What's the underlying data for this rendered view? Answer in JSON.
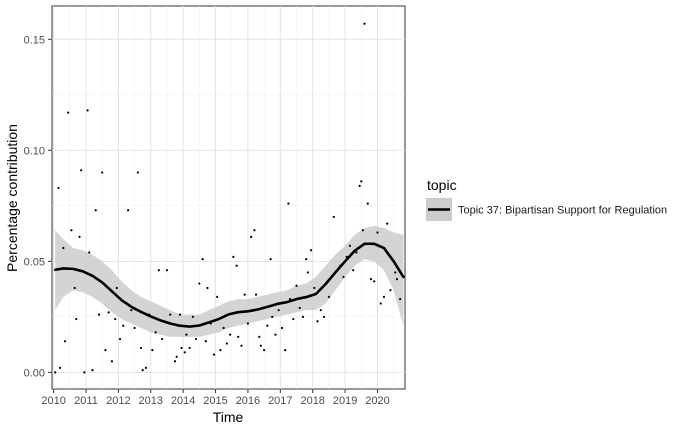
{
  "chart_data": {
    "type": "scatter",
    "title": "",
    "xlabel": "Time",
    "ylabel": "Percentage contribution",
    "xlim": [
      2009.95,
      2020.85
    ],
    "ylim": [
      -0.0075,
      0.165
    ],
    "x_ticks": [
      2010,
      2011,
      2012,
      2013,
      2014,
      2015,
      2016,
      2017,
      2018,
      2019,
      2020
    ],
    "x_tick_labels": [
      "2010",
      "2011",
      "2012",
      "2013",
      "2014",
      "2015",
      "2016",
      "2017",
      "2018",
      "2019",
      "2020"
    ],
    "y_ticks": [
      0.0,
      0.05,
      0.1,
      0.15
    ],
    "y_tick_labels": [
      "0.00",
      "0.05",
      "0.10",
      "0.15"
    ],
    "grid": true,
    "legend": {
      "title": "topic",
      "placement": "right",
      "entries": [
        "Topic 37: Bipartisan Support for Regulation"
      ]
    },
    "points": [
      [
        2010.05,
        0.0
      ],
      [
        2010.15,
        0.083
      ],
      [
        2010.2,
        0.002
      ],
      [
        2010.3,
        0.056
      ],
      [
        2010.35,
        0.014
      ],
      [
        2010.45,
        0.117
      ],
      [
        2010.55,
        0.064
      ],
      [
        2010.65,
        0.038
      ],
      [
        2010.7,
        0.024
      ],
      [
        2010.8,
        0.061
      ],
      [
        2010.85,
        0.091
      ],
      [
        2010.95,
        0.0
      ],
      [
        2011.05,
        0.118
      ],
      [
        2011.1,
        0.054
      ],
      [
        2011.2,
        0.001
      ],
      [
        2011.3,
        0.073
      ],
      [
        2011.4,
        0.026
      ],
      [
        2011.5,
        0.09
      ],
      [
        2011.6,
        0.01
      ],
      [
        2011.7,
        0.027
      ],
      [
        2011.8,
        0.005
      ],
      [
        2011.9,
        0.024
      ],
      [
        2011.95,
        0.038
      ],
      [
        2012.05,
        0.015
      ],
      [
        2012.15,
        0.021
      ],
      [
        2012.3,
        0.073
      ],
      [
        2012.4,
        0.028
      ],
      [
        2012.5,
        0.02
      ],
      [
        2012.6,
        0.09
      ],
      [
        2012.7,
        0.011
      ],
      [
        2012.75,
        0.001
      ],
      [
        2012.85,
        0.002
      ],
      [
        2012.95,
        0.026
      ],
      [
        2013.05,
        0.01
      ],
      [
        2013.15,
        0.018
      ],
      [
        2013.25,
        0.046
      ],
      [
        2013.35,
        0.015
      ],
      [
        2013.5,
        0.046
      ],
      [
        2013.6,
        0.026
      ],
      [
        2013.75,
        0.005
      ],
      [
        2013.8,
        0.007
      ],
      [
        2013.9,
        0.026
      ],
      [
        2013.95,
        0.011
      ],
      [
        2014.05,
        0.009
      ],
      [
        2014.1,
        0.017
      ],
      [
        2014.2,
        0.011
      ],
      [
        2014.3,
        0.025
      ],
      [
        2014.4,
        0.015
      ],
      [
        2014.5,
        0.04
      ],
      [
        2014.6,
        0.051
      ],
      [
        2014.7,
        0.014
      ],
      [
        2014.75,
        0.038
      ],
      [
        2014.85,
        0.022
      ],
      [
        2014.95,
        0.008
      ],
      [
        2015.05,
        0.034
      ],
      [
        2015.15,
        0.01
      ],
      [
        2015.25,
        0.02
      ],
      [
        2015.35,
        0.013
      ],
      [
        2015.45,
        0.017
      ],
      [
        2015.55,
        0.052
      ],
      [
        2015.65,
        0.048
      ],
      [
        2015.7,
        0.016
      ],
      [
        2015.8,
        0.012
      ],
      [
        2015.9,
        0.035
      ],
      [
        2016.0,
        0.022
      ],
      [
        2016.1,
        0.061
      ],
      [
        2016.2,
        0.064
      ],
      [
        2016.25,
        0.035
      ],
      [
        2016.35,
        0.016
      ],
      [
        2016.4,
        0.012
      ],
      [
        2016.5,
        0.01
      ],
      [
        2016.6,
        0.021
      ],
      [
        2016.7,
        0.051
      ],
      [
        2016.75,
        0.025
      ],
      [
        2016.85,
        0.017
      ],
      [
        2016.95,
        0.028
      ],
      [
        2017.05,
        0.02
      ],
      [
        2017.15,
        0.01
      ],
      [
        2017.25,
        0.076
      ],
      [
        2017.3,
        0.033
      ],
      [
        2017.4,
        0.024
      ],
      [
        2017.5,
        0.039
      ],
      [
        2017.6,
        0.029
      ],
      [
        2017.7,
        0.025
      ],
      [
        2017.8,
        0.051
      ],
      [
        2017.85,
        0.045
      ],
      [
        2017.95,
        0.055
      ],
      [
        2018.05,
        0.038
      ],
      [
        2018.15,
        0.023
      ],
      [
        2018.25,
        0.028
      ],
      [
        2018.35,
        0.025
      ],
      [
        2018.5,
        0.034
      ],
      [
        2018.65,
        0.07
      ],
      [
        2018.75,
        0.046
      ],
      [
        2018.85,
        0.048
      ],
      [
        2018.95,
        0.043
      ],
      [
        2019.05,
        0.052
      ],
      [
        2019.15,
        0.057
      ],
      [
        2019.25,
        0.046
      ],
      [
        2019.35,
        0.054
      ],
      [
        2019.45,
        0.084
      ],
      [
        2019.5,
        0.086
      ],
      [
        2019.55,
        0.064
      ],
      [
        2019.6,
        0.157
      ],
      [
        2019.7,
        0.076
      ],
      [
        2019.8,
        0.042
      ],
      [
        2019.9,
        0.041
      ],
      [
        2020.0,
        0.063
      ],
      [
        2020.1,
        0.031
      ],
      [
        2020.2,
        0.034
      ],
      [
        2020.3,
        0.067
      ],
      [
        2020.4,
        0.037
      ],
      [
        2020.55,
        0.045
      ],
      [
        2020.6,
        0.042
      ],
      [
        2020.7,
        0.033
      ]
    ],
    "series": [
      {
        "name": "Topic 37: Bipartisan Support for Regulation",
        "type": "smooth",
        "color": "#000000",
        "band_color": "#cccccc",
        "x": [
          2010.05,
          2010.3,
          2010.6,
          2010.9,
          2011.2,
          2011.5,
          2011.8,
          2012.1,
          2012.4,
          2012.7,
          2013.0,
          2013.3,
          2013.6,
          2013.9,
          2014.2,
          2014.5,
          2014.8,
          2015.1,
          2015.4,
          2015.7,
          2016.0,
          2016.3,
          2016.6,
          2016.9,
          2017.2,
          2017.5,
          2017.8,
          2018.1,
          2018.4,
          2018.7,
          2019.0,
          2019.3,
          2019.6,
          2019.9,
          2020.2,
          2020.5,
          2020.8
        ],
        "y": [
          0.0462,
          0.0468,
          0.0466,
          0.0455,
          0.0435,
          0.0405,
          0.0365,
          0.0325,
          0.0295,
          0.0272,
          0.0252,
          0.0234,
          0.022,
          0.021,
          0.0206,
          0.0211,
          0.0225,
          0.024,
          0.0261,
          0.0271,
          0.0275,
          0.0283,
          0.0295,
          0.0308,
          0.0316,
          0.033,
          0.0339,
          0.0353,
          0.0398,
          0.045,
          0.05,
          0.0548,
          0.0579,
          0.0579,
          0.056,
          0.05,
          0.043
        ],
        "lower": [
          0.028,
          0.034,
          0.037,
          0.036,
          0.034,
          0.031,
          0.027,
          0.024,
          0.022,
          0.02,
          0.018,
          0.017,
          0.016,
          0.016,
          0.016,
          0.016,
          0.017,
          0.018,
          0.02,
          0.021,
          0.022,
          0.023,
          0.024,
          0.025,
          0.026,
          0.027,
          0.028,
          0.028,
          0.031,
          0.037,
          0.043,
          0.048,
          0.051,
          0.05,
          0.046,
          0.037,
          0.021
        ],
        "upper": [
          0.064,
          0.06,
          0.056,
          0.055,
          0.053,
          0.05,
          0.046,
          0.041,
          0.037,
          0.034,
          0.032,
          0.03,
          0.028,
          0.026,
          0.026,
          0.026,
          0.028,
          0.03,
          0.032,
          0.033,
          0.033,
          0.034,
          0.035,
          0.036,
          0.037,
          0.039,
          0.04,
          0.043,
          0.048,
          0.053,
          0.057,
          0.062,
          0.065,
          0.066,
          0.065,
          0.063,
          0.062
        ]
      }
    ]
  }
}
